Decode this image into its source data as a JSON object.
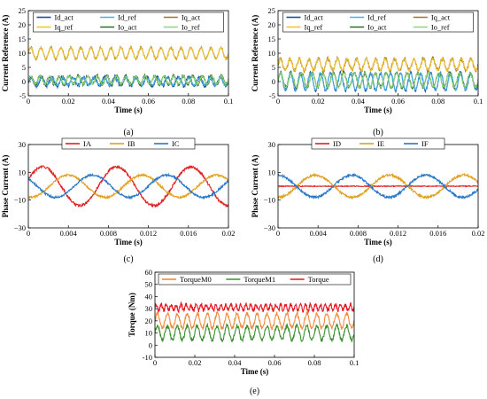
{
  "colors": {
    "dark_blue": "#1f4e9c",
    "light_blue": "#42b4e6",
    "dark_gold": "#a07820",
    "gold": "#f2c430",
    "dark_green": "#2e6b2e",
    "light_green": "#8ed67a",
    "red": "#e02020",
    "orange_gold": "#e0a020",
    "blue": "#2878c8",
    "orange": "#f08a3c",
    "green": "#3a8f2f",
    "torque_red": "#e8141e"
  },
  "chart_data": [
    {
      "id": "a",
      "type": "line",
      "caption": "(a)",
      "xlabel": "Time (s)",
      "ylabel": "Current Reference (A)",
      "xlim": [
        0,
        0.1
      ],
      "ylim": [
        -5,
        25
      ],
      "xticks": [
        0,
        0.02,
        0.04,
        0.06,
        0.08,
        0.1
      ],
      "xtick_labels": [
        "0",
        "0.02",
        "0.04",
        "0.06",
        "0.08",
        "0.1"
      ],
      "yticks": [
        -5,
        0,
        5,
        10,
        15,
        20,
        25
      ],
      "ytick_labels": [
        "-5",
        "0",
        "5",
        "10",
        "15",
        "20",
        "25"
      ],
      "legend_columns": 3,
      "series": [
        {
          "name": "Id_act",
          "color": "#1f4e9c",
          "mean": 0,
          "amplitude": 1.5,
          "frequency": 190,
          "noise": 0.7
        },
        {
          "name": "Id_ref",
          "color": "#42b4e6",
          "mean": 0,
          "amplitude": 1.3,
          "frequency": 190,
          "noise": 0.2
        },
        {
          "name": "Iq_act",
          "color": "#a07820",
          "mean": 10,
          "amplitude": 2,
          "frequency": 200,
          "noise": 0.4
        },
        {
          "name": "Iq_ref",
          "color": "#f2c430",
          "mean": 10,
          "amplitude": 2,
          "frequency": 200,
          "noise": 0.15
        },
        {
          "name": "Io_act",
          "color": "#2e6b2e",
          "mean": 0.5,
          "amplitude": 1.5,
          "frequency": 210,
          "noise": 0.6
        },
        {
          "name": "Io_ref",
          "color": "#8ed67a",
          "mean": 0.5,
          "amplitude": 1.4,
          "frequency": 210,
          "noise": 0.2
        }
      ]
    },
    {
      "id": "b",
      "type": "line",
      "caption": "(b)",
      "xlabel": "Time (s)",
      "ylabel": "Current Reference (A)",
      "xlim": [
        0,
        0.1
      ],
      "ylim": [
        -5,
        25
      ],
      "xticks": [
        0,
        0.02,
        0.04,
        0.06,
        0.08,
        0.1
      ],
      "xtick_labels": [
        "0",
        "0.02",
        "0.04",
        "0.06",
        "0.08",
        "0.1"
      ],
      "yticks": [
        -5,
        0,
        5,
        10,
        15,
        20,
        25
      ],
      "ytick_labels": [
        "-5",
        "0",
        "5",
        "10",
        "15",
        "20",
        "25"
      ],
      "legend_columns": 3,
      "series": [
        {
          "name": "Id_act",
          "color": "#1f4e9c",
          "mean": 0,
          "amplitude": 3,
          "frequency": 200,
          "noise": 0.6
        },
        {
          "name": "Id_ref",
          "color": "#42b4e6",
          "mean": 0,
          "amplitude": 3,
          "frequency": 200,
          "noise": 0.2
        },
        {
          "name": "Iq_act",
          "color": "#a07820",
          "mean": 6,
          "amplitude": 2,
          "frequency": 210,
          "noise": 0.7
        },
        {
          "name": "Iq_ref",
          "color": "#f2c430",
          "mean": 6,
          "amplitude": 2,
          "frequency": 210,
          "noise": 0.3
        },
        {
          "name": "Io_act",
          "color": "#2e6b2e",
          "mean": 0.5,
          "amplitude": 2.5,
          "frequency": 190,
          "noise": 0.6
        },
        {
          "name": "Io_ref",
          "color": "#8ed67a",
          "mean": 0.5,
          "amplitude": 2.5,
          "frequency": 190,
          "noise": 0.2
        }
      ]
    },
    {
      "id": "c",
      "type": "line",
      "caption": "(c)",
      "xlabel": "Time (s)",
      "ylabel": "Phase Current (A)",
      "xlim": [
        0,
        0.02
      ],
      "ylim": [
        -30,
        30
      ],
      "xticks": [
        0,
        0.004,
        0.008,
        0.012,
        0.016,
        0.02
      ],
      "xtick_labels": [
        "0",
        "0.004",
        "0.008",
        "0.012",
        "0.016",
        "0.02"
      ],
      "yticks": [
        -30,
        -10,
        10,
        30
      ],
      "ytick_labels": [
        "−30",
        "−10",
        "10",
        "30"
      ],
      "legend_columns": 3,
      "series": [
        {
          "name": "IA",
          "color": "#e02020",
          "mean": 0,
          "amplitude": 14,
          "frequency": 135,
          "phase": 0.35,
          "noise": 0.9
        },
        {
          "name": "IB",
          "color": "#e0a020",
          "mean": 0,
          "amplitude": 8,
          "frequency": 135,
          "phase": -1.8,
          "noise": 0.7
        },
        {
          "name": "IC",
          "color": "#2878c8",
          "mean": 0,
          "amplitude": 8,
          "frequency": 135,
          "phase": 2.4,
          "noise": 0.7
        }
      ]
    },
    {
      "id": "d",
      "type": "line",
      "caption": "(d)",
      "xlabel": "Time (s)",
      "ylabel": "Phase Current (A)",
      "xlim": [
        0,
        0.02
      ],
      "ylim": [
        -30,
        30
      ],
      "xticks": [
        0,
        0.004,
        0.008,
        0.012,
        0.016,
        0.02
      ],
      "xtick_labels": [
        "0",
        "0.004",
        "0.008",
        "0.012",
        "0.016",
        "0.02"
      ],
      "yticks": [
        -30,
        -10,
        10,
        30
      ],
      "ytick_labels": [
        "−30",
        "−10",
        "10",
        "30"
      ],
      "legend_columns": 3,
      "series": [
        {
          "name": "ID",
          "color": "#e02020",
          "mean": 0,
          "amplitude": 0,
          "frequency": 135,
          "phase": 0,
          "noise": 0.3
        },
        {
          "name": "IE",
          "color": "#e0a020",
          "mean": 0,
          "amplitude": 8,
          "frequency": 135,
          "phase": -1.6,
          "noise": 0.8
        },
        {
          "name": "IF",
          "color": "#2878c8",
          "mean": 0,
          "amplitude": 8,
          "frequency": 135,
          "phase": 1.6,
          "noise": 0.8
        }
      ]
    },
    {
      "id": "e",
      "type": "line",
      "caption": "(e)",
      "xlabel": "Time (s)",
      "ylabel": "Torque (Nm)",
      "xlim": [
        0,
        0.1
      ],
      "ylim": [
        -10,
        60
      ],
      "xticks": [
        0,
        0.02,
        0.04,
        0.06,
        0.08,
        0.1
      ],
      "xtick_labels": [
        "0",
        "0.02",
        "0.04",
        "0.06",
        "0.08",
        "0.1"
      ],
      "yticks": [
        -10,
        0,
        10,
        20,
        30,
        40,
        50,
        60
      ],
      "ytick_labels": [
        "-10",
        "0",
        "10",
        "20",
        "30",
        "40",
        "50",
        "60"
      ],
      "legend_columns": 3,
      "series": [
        {
          "name": "TorqueM0",
          "color": "#f08a3c",
          "mean": 20,
          "amplitude": 6,
          "frequency": 200,
          "noise": 1.5
        },
        {
          "name": "TorqueM1",
          "color": "#3a8f2f",
          "mean": 10,
          "amplitude": 6,
          "frequency": 200,
          "noise": 1.5
        },
        {
          "name": "Torque",
          "color": "#e8141e",
          "mean": 31,
          "amplitude": 2.5,
          "frequency": 400,
          "noise": 1.5
        }
      ]
    }
  ]
}
